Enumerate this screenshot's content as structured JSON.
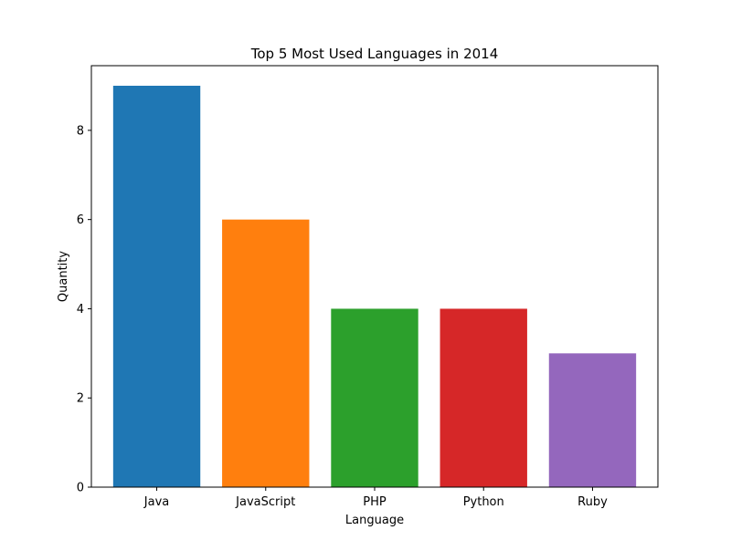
{
  "chart_data": {
    "type": "bar",
    "title": "Top 5 Most Used Languages in 2014",
    "xlabel": "Language",
    "ylabel": "Quantity",
    "categories": [
      "Java",
      "JavaScript",
      "PHP",
      "Python",
      "Ruby"
    ],
    "values": [
      9,
      6,
      4,
      4,
      3
    ],
    "colors": [
      "#1f77b4",
      "#ff7f0e",
      "#2ca02c",
      "#d62728",
      "#9467bd"
    ],
    "ylim": [
      0,
      9.45
    ],
    "yticks": [
      0,
      2,
      4,
      6,
      8
    ],
    "grid": false,
    "legend": "none"
  }
}
